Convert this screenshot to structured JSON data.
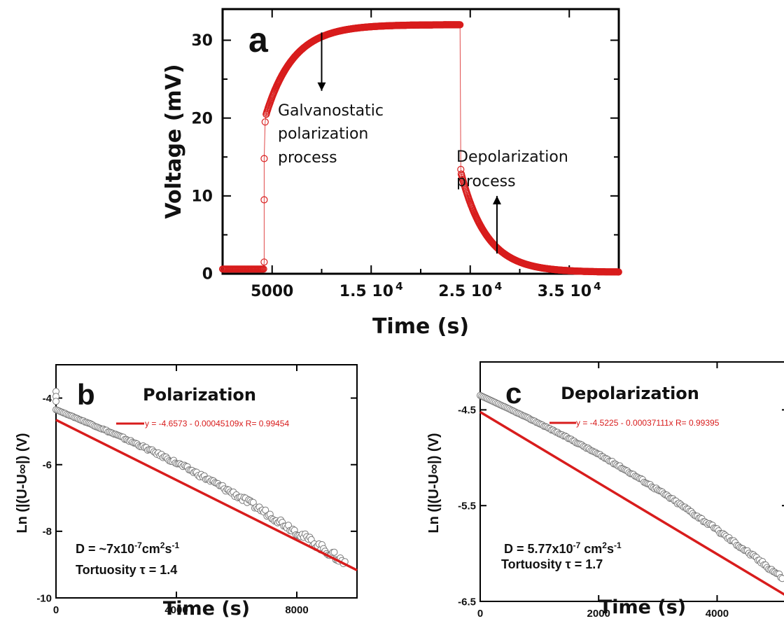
{
  "colors": {
    "marker": "#d81c1c",
    "fit_line": "#d81c1c",
    "open_marker_stroke": "#7a7a7a",
    "axis": "#000000",
    "fit_text": "#d81c1c"
  },
  "chart_data": [
    {
      "id": "a",
      "type": "scatter",
      "panel_label": "a",
      "title": "",
      "xlabel": "Time (s)",
      "ylabel": "Voltage (mV)",
      "xlim": [
        0,
        40000
      ],
      "ylim": [
        0,
        34
      ],
      "x_ticks": [
        {
          "value": 5000,
          "label": "5000",
          "exp": ""
        },
        {
          "value": 15000,
          "label": "1.5 10",
          "exp": "4"
        },
        {
          "value": 25000,
          "label": "2.5 10",
          "exp": "4"
        },
        {
          "value": 35000,
          "label": "3.5 10",
          "exp": "4"
        }
      ],
      "y_ticks": [
        {
          "value": 0,
          "label": "0"
        },
        {
          "value": 10,
          "label": "10"
        },
        {
          "value": 20,
          "label": "20"
        },
        {
          "value": 30,
          "label": "30"
        }
      ],
      "annotations": [
        {
          "lines": [
            "Galvanostatic",
            "polarization",
            "process"
          ],
          "arrow_from": [
            10000,
            31
          ],
          "arrow_to": [
            10000,
            23.5
          ]
        },
        {
          "lines": [
            "Depolarization",
            "process"
          ],
          "arrow_from": [
            27700,
            2.6
          ],
          "arrow_to": [
            27700,
            10
          ]
        }
      ],
      "series": [
        {
          "segments": [
            {
              "kind": "const",
              "x_start": 0,
              "x_end": 4200,
              "value": 0.6
            },
            {
              "kind": "points",
              "points": [
                [
                  4200,
                  1.5
                ],
                [
                  4200,
                  9.5
                ],
                [
                  4200,
                  14.8
                ],
                [
                  4300,
                  19.5
                ],
                [
                  4400,
                  20.5
                ]
              ]
            },
            {
              "kind": "rise",
              "x_start": 4400,
              "x_end": 24000,
              "from": 20.5,
              "to": 32.0,
              "tau": 2800
            },
            {
              "kind": "points",
              "points": [
                [
                  24050,
                  13.4
                ],
                [
                  24100,
                  12.8
                ]
              ]
            },
            {
              "kind": "decay",
              "x_start": 24100,
              "x_end": 40000,
              "from": 12.8,
              "to": 0.2,
              "tau": 2600
            }
          ]
        }
      ]
    },
    {
      "id": "b",
      "type": "scatter",
      "panel_label": "b",
      "title": "Polarization",
      "xlabel": "Time (s)",
      "ylabel": "Ln (|(U-U∞|) (V)",
      "xlim": [
        0,
        10000
      ],
      "ylim": [
        -10,
        -3
      ],
      "x_ticks": [
        {
          "value": 0,
          "label": "0"
        },
        {
          "value": 4000,
          "label": "4000"
        },
        {
          "value": 8000,
          "label": "8000"
        }
      ],
      "y_ticks": [
        {
          "value": -4,
          "label": "-4"
        },
        {
          "value": -6,
          "label": "-6"
        },
        {
          "value": -8,
          "label": "-8"
        },
        {
          "value": -10,
          "label": "-10"
        }
      ],
      "fit": {
        "intercept": -4.6573,
        "slope": -0.00045109,
        "r": 0.99454,
        "label": "y = -4.6573 - 0.00045109x   R= 0.99454"
      },
      "text_lines": [
        "D = ~7x10-7cm2s-1",
        "Tortuosity τ = 1.4"
      ],
      "points_generator": {
        "x_start": 0,
        "x_end": 9600,
        "count": 190,
        "curve": "quadratic",
        "start_y": -4.35,
        "end_y": -8.95,
        "noise": 0.12
      },
      "extra_points": [
        [
          0,
          -3.8
        ],
        [
          0,
          -3.95
        ],
        [
          0,
          -4.1
        ]
      ]
    },
    {
      "id": "c",
      "type": "scatter",
      "panel_label": "c",
      "title": "Depolarization",
      "xlabel": "Time (s)",
      "ylabel": "Ln (|(U-U∞|) (V)",
      "xlim": [
        0,
        5200
      ],
      "ylim": [
        -6.5,
        -4.0
      ],
      "x_ticks": [
        {
          "value": 0,
          "label": "0"
        },
        {
          "value": 2000,
          "label": "2000"
        },
        {
          "value": 4000,
          "label": "4000"
        }
      ],
      "y_ticks": [
        {
          "value": -4.5,
          "label": "-4.5"
        },
        {
          "value": -5.5,
          "label": "-5.5"
        },
        {
          "value": -6.5,
          "label": "-6.5"
        }
      ],
      "fit": {
        "intercept": -4.5225,
        "slope": -0.00037111,
        "r": 0.99395,
        "label": "y = -4.5225 - 0.00037111x   R= 0.99395"
      },
      "text_lines": [
        "D = 5.77x10-7 cm2s-1",
        "Tortuosity τ = 1.7"
      ],
      "points_generator": {
        "x_start": 0,
        "x_end": 5100,
        "count": 200,
        "curve": "quadratic",
        "start_y": -4.35,
        "end_y": -6.25,
        "noise": 0.02
      },
      "extra_points": []
    }
  ]
}
